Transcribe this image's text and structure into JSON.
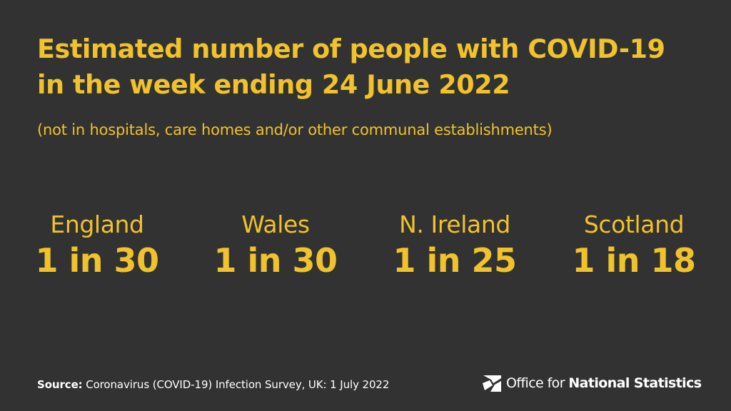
{
  "header": {
    "title_line1": "Estimated number of people with COVID-19",
    "title_line2": "in the week ending 24 June 2022",
    "subtitle": "(not in hospitals, care homes and/or other communal establishments)"
  },
  "stats": [
    {
      "region": "England",
      "value": "1 in 30"
    },
    {
      "region": "Wales",
      "value": "1 in 30"
    },
    {
      "region": "N. Ireland",
      "value": "1 in 25"
    },
    {
      "region": "Scotland",
      "value": "1 in 18"
    }
  ],
  "footer": {
    "source_label": "Source:",
    "source_text": "Coronavirus (COVID-19) Infection Survey, UK: 1 July 2022",
    "logo_text_light": "Office for ",
    "logo_text_bold": "National Statistics"
  },
  "colors": {
    "background": "#323232",
    "accent": "#f0c22b",
    "footer_text": "#ffffff"
  },
  "icons": {
    "brand_logo": "ons-logo-icon"
  }
}
